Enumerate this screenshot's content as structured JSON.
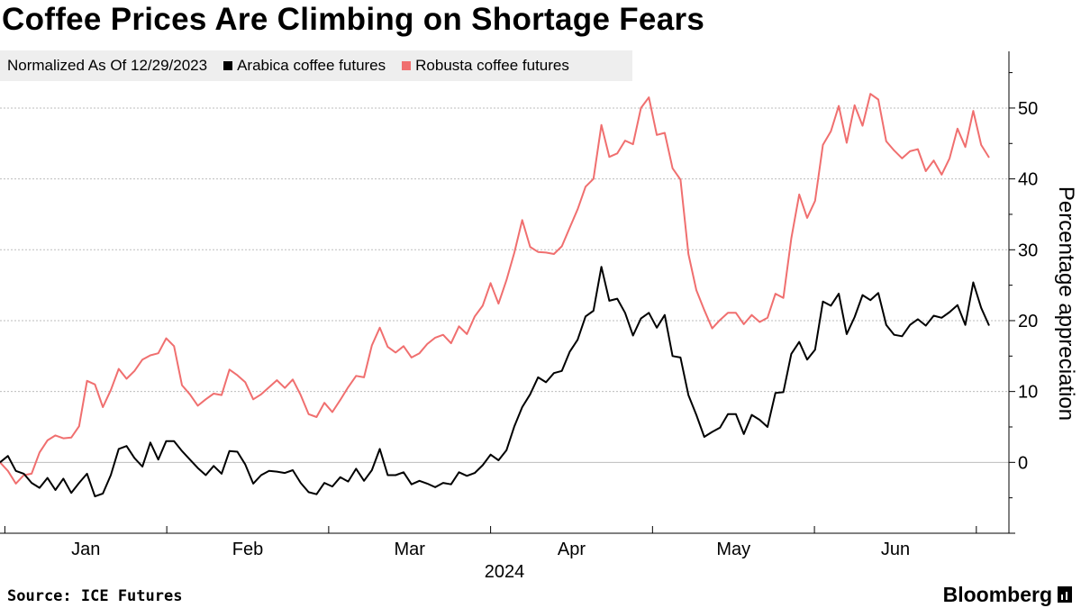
{
  "chart_data": {
    "type": "line",
    "title": "Coffee Prices Are Climbing on Shortage Fears",
    "normalization_note": "Normalized As Of 12/29/2023",
    "ylabel": "Percentage appreciation",
    "xlabel": "2024",
    "ylim": [
      -10,
      58
    ],
    "yticks": [
      0,
      10,
      20,
      30,
      40,
      50
    ],
    "month_labels": [
      "Jan",
      "Feb",
      "Mar",
      "Apr",
      "May",
      "Jun"
    ],
    "series": [
      {
        "name": "Arabica coffee futures",
        "color": "#000000",
        "values": [
          0,
          0.9,
          -1.2,
          -1.6,
          -2.9,
          -3.6,
          -2.2,
          -3.9,
          -2.3,
          -4.3,
          -2.9,
          -1.6,
          -4.8,
          -4.4,
          -1.8,
          1.9,
          2.3,
          0.6,
          -0.6,
          2.8,
          0.4,
          3,
          3,
          1.6,
          0.4,
          -0.8,
          -1.8,
          -0.5,
          -1.6,
          1.6,
          1.5,
          -0.3,
          -3,
          -1.8,
          -1.2,
          -1.3,
          -1.5,
          -1.1,
          -2.9,
          -4.2,
          -4.5,
          -2.9,
          -3.4,
          -2.1,
          -2.7,
          -0.9,
          -2.6,
          -1.1,
          1.9,
          -1.8,
          -1.8,
          -1.4,
          -3.1,
          -2.6,
          -3,
          -3.5,
          -2.9,
          -3.1,
          -1.4,
          -1.9,
          -1.5,
          -0.4,
          1.1,
          0.3,
          1.7,
          5.1,
          7.8,
          9.6,
          12,
          11.3,
          12.6,
          12.9,
          15.6,
          17.3,
          20.6,
          21.4,
          27.6,
          22.8,
          23.1,
          21.1,
          17.9,
          20.3,
          21.1,
          19,
          20.8,
          15,
          14.8,
          9.5,
          6.7,
          3.6,
          4.3,
          4.9,
          6.8,
          6.8,
          4,
          6.7,
          6,
          5,
          9.8,
          9.9,
          15.3,
          17,
          14.5,
          15.9,
          22.7,
          22.1,
          23.8,
          18.1,
          20.5,
          23.6,
          22.9,
          23.9,
          19.4,
          18,
          17.8,
          19.4,
          20.2,
          19.3,
          20.7,
          20.4,
          21.2,
          22.2,
          19.4,
          25.4,
          21.8,
          19.3
        ]
      },
      {
        "name": "Robusta coffee futures",
        "color": "#f06f6f",
        "values": [
          0,
          -1.2,
          -3,
          -1.8,
          -1.6,
          1.4,
          3.1,
          3.8,
          3.4,
          3.5,
          5.1,
          11.5,
          11,
          7.8,
          10.2,
          13.2,
          11.8,
          12.9,
          14.5,
          15.1,
          15.4,
          17.5,
          16.4,
          10.9,
          9.6,
          8,
          8.9,
          9.7,
          9.5,
          13.1,
          12.3,
          11.3,
          8.9,
          9.6,
          10.6,
          11.6,
          10.5,
          11.7,
          9.5,
          6.8,
          6.4,
          8.4,
          7.1,
          8.8,
          10.6,
          12.2,
          12,
          16.5,
          19,
          16.3,
          15.5,
          16.4,
          14.8,
          15.4,
          16.7,
          17.6,
          18,
          16.8,
          19.2,
          18.1,
          20.6,
          22.1,
          25.3,
          22.4,
          25.7,
          29.6,
          34.2,
          30.4,
          29.7,
          29.6,
          29.4,
          30.5,
          33.1,
          35.7,
          38.9,
          40,
          47.6,
          43.1,
          43.6,
          45.4,
          44.9,
          50,
          51.5,
          46.2,
          46.5,
          41.5,
          39.9,
          29.4,
          24.3,
          21.5,
          18.9,
          20.1,
          21.1,
          21.1,
          19.5,
          20.8,
          19.8,
          20.4,
          23.8,
          23.2,
          31.6,
          37.8,
          34.5,
          36.9,
          44.8,
          46.7,
          50.3,
          45.1,
          50.4,
          47.5,
          52,
          51.2,
          45.3,
          44,
          42.9,
          43.9,
          44.2,
          41.1,
          42.6,
          40.6,
          42.9,
          47.1,
          44.5,
          49.6,
          44.8,
          43
        ]
      }
    ]
  },
  "source": "Source: ICE Futures",
  "brand": "Bloomberg"
}
